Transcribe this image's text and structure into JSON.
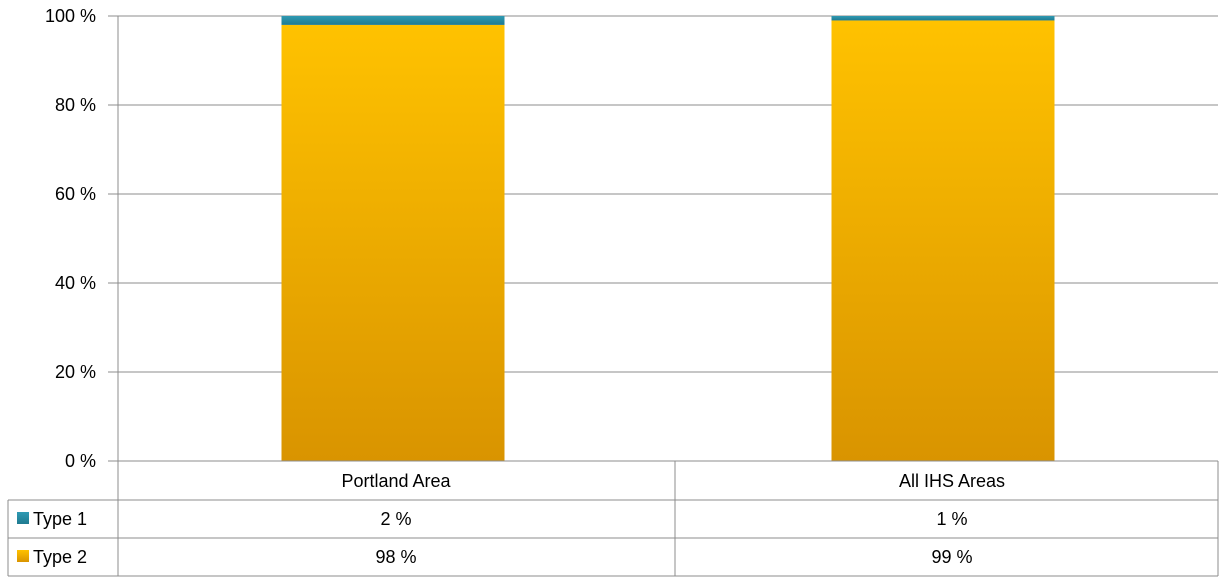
{
  "chart_data": {
    "type": "bar",
    "stacked": true,
    "percent_stacked": true,
    "title": "",
    "xlabel": "",
    "ylabel": "",
    "ylim": [
      0,
      100
    ],
    "yticks": [
      "0 %",
      "20 %",
      "40 %",
      "60 %",
      "80 %",
      "100 %"
    ],
    "grid": true,
    "legend": "data-table",
    "categories": [
      "Portland Area",
      "All IHS Areas"
    ],
    "series": [
      {
        "name": "Type 1",
        "values": [
          2,
          1
        ],
        "labels": [
          "2 %",
          "1 %"
        ],
        "color": "#2b8fa8"
      },
      {
        "name": "Type 2",
        "values": [
          98,
          99
        ],
        "labels": [
          "98 %",
          "99 %"
        ],
        "color": "#ffc000"
      }
    ]
  }
}
